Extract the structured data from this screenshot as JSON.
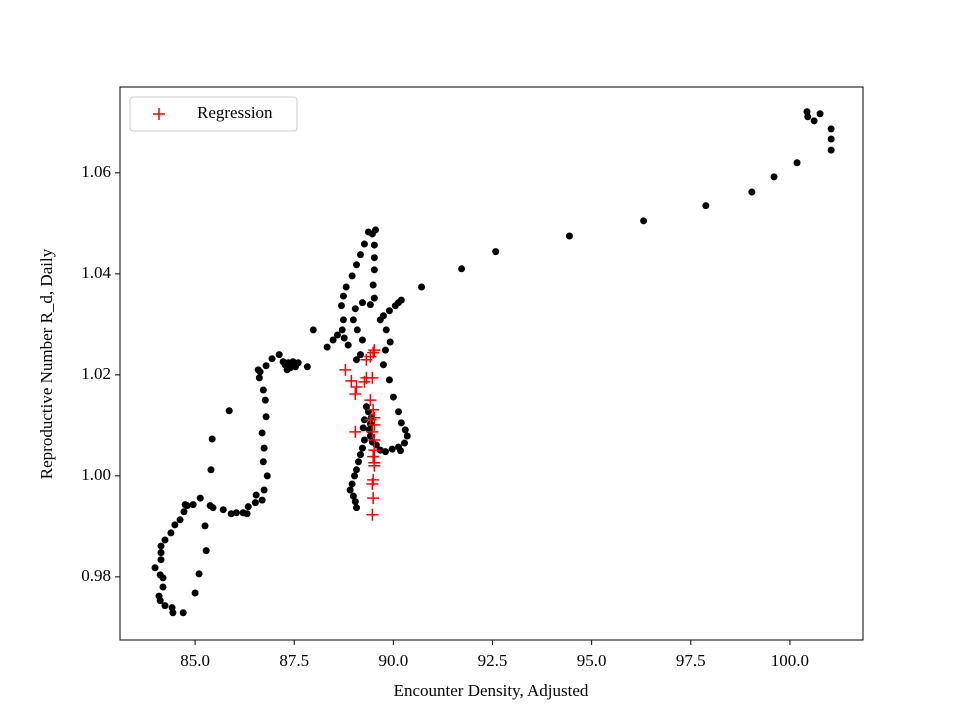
{
  "chart_data": {
    "type": "scatter",
    "xlabel": "Encounter Density, Adjusted",
    "ylabel": "Reproductive Number R_d, Daily",
    "xlim": [
      83.106,
      101.843
    ],
    "ylim": [
      0.9675,
      1.077
    ],
    "xticks": [
      {
        "value": 85,
        "label": "85.0"
      },
      87.5,
      {
        "value": 90,
        "label": "90.0"
      },
      92.5,
      {
        "value": 95,
        "label": "95.0"
      },
      97.5,
      {
        "value": 100,
        "label": "100.0"
      }
    ],
    "yticks": [
      0.98,
      {
        "value": 1,
        "label": "1.00"
      },
      1.02,
      1.04,
      1.06
    ],
    "legend": "upper left",
    "series": [
      {
        "color": "#000000",
        "marker": "o",
        "x": [
          100.43,
          100.45,
          100.61,
          100.76,
          101.04,
          101.04,
          101.04,
          100.18,
          99.6,
          99.04,
          97.88,
          96.31,
          94.44,
          92.58,
          91.72,
          90.71,
          90.2,
          90.13,
          90.05,
          89.9,
          89.75,
          89.67,
          89.82,
          89.92,
          89.8,
          89.75,
          89.9,
          90.0,
          90.13,
          90.2,
          90.3,
          90.35,
          90.28,
          90.13,
          89.97,
          90.18,
          89.8,
          89.67,
          89.57,
          89.47,
          89.42,
          89.39,
          89.42,
          89.44,
          89.37,
          89.32,
          89.27,
          89.24,
          89.27,
          89.22,
          89.17,
          89.12,
          89.07,
          89.02,
          88.96,
          88.91,
          89.07,
          89.04,
          88.99,
          89.37,
          89.47,
          89.55,
          89.52,
          89.52,
          89.52,
          89.49,
          89.52,
          89.42,
          89.22,
          89.04,
          88.99,
          89.09,
          89.22,
          89.17,
          89.07,
          88.86,
          88.76,
          88.71,
          88.74,
          88.69,
          88.74,
          88.81,
          88.96,
          89.07,
          89.17,
          89.27,
          88.59,
          88.48,
          88.33,
          87.98,
          87.83,
          87.6,
          87.53,
          87.4,
          87.32,
          87.27,
          87.35,
          87.47,
          87.22,
          86.94,
          87.12,
          86.79,
          86.64,
          86.59,
          86.62,
          86.72,
          86.77,
          86.79,
          86.69,
          86.74,
          86.72,
          86.82,
          86.74,
          86.69,
          86.54,
          86.52,
          86.34,
          86.31,
          86.21,
          86.04,
          85.91,
          85.71,
          85.45,
          85.38,
          85.13,
          85.25,
          85.28,
          85.1,
          85.0,
          84.7,
          84.44,
          84.42,
          84.24,
          84.12,
          84.09,
          84.19,
          84.19,
          84.12,
          83.99,
          84.14,
          84.14,
          84.14,
          84.24,
          84.39,
          84.49,
          84.62,
          84.72,
          84.75,
          84.8,
          84.95,
          85.43,
          85.4,
          85.86
        ],
        "values": [
          1.0721,
          1.0711,
          1.0703,
          1.0717,
          1.0687,
          1.0667,
          1.0645,
          1.062,
          1.0592,
          1.0562,
          1.0535,
          1.0505,
          1.0475,
          1.0444,
          1.041,
          1.0374,
          1.0348,
          1.0343,
          1.0337,
          1.0327,
          1.0317,
          1.0309,
          1.0289,
          1.0265,
          1.0249,
          1.022,
          1.019,
          1.0156,
          1.0127,
          1.0105,
          1.0091,
          1.0079,
          1.0065,
          1.0057,
          1.0053,
          1.005,
          1.0048,
          1.0051,
          1.0061,
          1.0067,
          1.0079,
          1.0091,
          1.0103,
          1.0115,
          1.0127,
          1.0137,
          1.0111,
          1.0095,
          1.0071,
          1.0055,
          1.0042,
          1.0028,
          1.0012,
          1.0,
          0.9984,
          0.9972,
          0.9937,
          0.9949,
          0.996,
          1.0483,
          1.0479,
          1.0487,
          1.0457,
          1.0432,
          1.0408,
          1.0378,
          1.0352,
          1.0339,
          1.0343,
          1.0331,
          1.0309,
          1.0289,
          1.0269,
          1.024,
          1.023,
          1.0259,
          1.0273,
          1.0289,
          1.0309,
          1.0337,
          1.0356,
          1.0374,
          1.0396,
          1.0418,
          1.0438,
          1.0459,
          1.0279,
          1.0269,
          1.0255,
          1.0289,
          1.0216,
          1.0224,
          1.0216,
          1.0214,
          1.021,
          1.022,
          1.0224,
          1.0226,
          1.0226,
          1.0232,
          1.024,
          1.0218,
          1.0206,
          1.021,
          1.0194,
          1.017,
          1.015,
          1.0117,
          1.0085,
          1.0055,
          1.0028,
          1.0,
          0.9972,
          0.9952,
          0.9962,
          0.9947,
          0.9939,
          0.9925,
          0.9927,
          0.9927,
          0.9925,
          0.9933,
          0.9937,
          0.9941,
          0.9956,
          0.9901,
          0.9852,
          0.9806,
          0.9768,
          0.9729,
          0.9729,
          0.9739,
          0.9743,
          0.9753,
          0.9762,
          0.978,
          0.9798,
          0.9804,
          0.9818,
          0.9834,
          0.9848,
          0.9861,
          0.9873,
          0.9887,
          0.9903,
          0.9913,
          0.9929,
          0.9943,
          0.9941,
          0.9943,
          1.0073,
          1.0012,
          1.0129
        ]
      },
      {
        "name": "Regression",
        "color": "#ff0000",
        "marker": "+",
        "x": [
          89.52,
          89.49,
          89.42,
          89.32,
          88.79,
          88.94,
          89.07,
          89.32,
          89.47,
          89.27,
          89.04,
          89.49,
          89.52,
          89.52,
          89.47,
          89.04,
          89.52,
          89.52,
          89.49,
          89.52,
          89.52,
          89.49,
          89.47,
          89.49,
          89.47,
          89.42,
          89.42
        ],
        "values": [
          1.0249,
          1.0244,
          1.0236,
          1.023,
          1.021,
          1.0188,
          1.0176,
          1.0194,
          1.0194,
          1.0186,
          1.0162,
          1.0131,
          1.0115,
          1.0101,
          1.0087,
          1.0087,
          1.0071,
          1.0051,
          1.0038,
          1.0026,
          1.002,
          0.9992,
          0.9984,
          0.9956,
          0.9923,
          1.0111,
          1.015
        ]
      }
    ]
  }
}
